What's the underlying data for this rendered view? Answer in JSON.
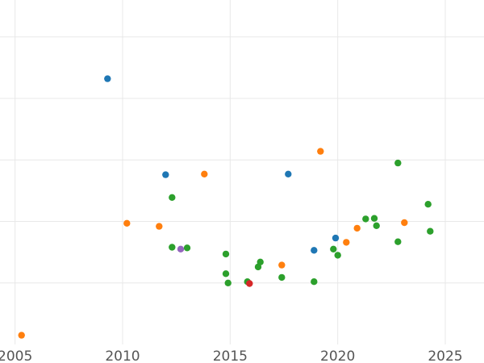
{
  "chart_data": {
    "type": "scatter",
    "title": "",
    "xlabel": "",
    "ylabel": "",
    "grid": true,
    "xlim": [
      2004.3,
      2026.8
    ],
    "ylim": [
      0,
      5.6
    ],
    "x_ticks": [
      2005,
      2010,
      2015,
      2020,
      2025
    ],
    "x_tick_labels": [
      "2005",
      "2010",
      "2015",
      "2020",
      "2025"
    ],
    "y_gridlines": [
      1,
      2,
      3,
      4,
      5
    ],
    "series": [
      {
        "color": "#1f77b4",
        "points": [
          {
            "x": 2009.3,
            "y": 4.32
          },
          {
            "x": 2012.0,
            "y": 2.76
          },
          {
            "x": 2017.7,
            "y": 2.77
          },
          {
            "x": 2018.9,
            "y": 1.53
          },
          {
            "x": 2019.9,
            "y": 1.73
          }
        ]
      },
      {
        "color": "#ff7f0e",
        "points": [
          {
            "x": 2005.3,
            "y": 0.15
          },
          {
            "x": 2010.2,
            "y": 1.97
          },
          {
            "x": 2011.7,
            "y": 1.92
          },
          {
            "x": 2013.8,
            "y": 2.77
          },
          {
            "x": 2017.4,
            "y": 1.29
          },
          {
            "x": 2019.2,
            "y": 3.14
          },
          {
            "x": 2020.4,
            "y": 1.66
          },
          {
            "x": 2020.9,
            "y": 1.89
          },
          {
            "x": 2023.1,
            "y": 1.98
          }
        ]
      },
      {
        "color": "#2ca02c",
        "points": [
          {
            "x": 2012.3,
            "y": 2.39
          },
          {
            "x": 2012.3,
            "y": 1.58
          },
          {
            "x": 2013.0,
            "y": 1.57
          },
          {
            "x": 2014.8,
            "y": 1.47
          },
          {
            "x": 2014.8,
            "y": 1.15
          },
          {
            "x": 2014.9,
            "y": 1.0
          },
          {
            "x": 2015.8,
            "y": 1.02
          },
          {
            "x": 2016.3,
            "y": 1.26
          },
          {
            "x": 2016.4,
            "y": 1.34
          },
          {
            "x": 2017.4,
            "y": 1.09
          },
          {
            "x": 2018.9,
            "y": 1.02
          },
          {
            "x": 2019.8,
            "y": 1.55
          },
          {
            "x": 2020.0,
            "y": 1.45
          },
          {
            "x": 2021.3,
            "y": 2.04
          },
          {
            "x": 2021.7,
            "y": 2.05
          },
          {
            "x": 2021.8,
            "y": 1.93
          },
          {
            "x": 2022.8,
            "y": 2.95
          },
          {
            "x": 2022.8,
            "y": 1.67
          },
          {
            "x": 2024.2,
            "y": 2.28
          },
          {
            "x": 2024.3,
            "y": 1.84
          }
        ]
      },
      {
        "color": "#d62728",
        "points": [
          {
            "x": 2015.9,
            "y": 0.99
          }
        ]
      },
      {
        "color": "#9467bd",
        "points": [
          {
            "x": 2012.7,
            "y": 1.55
          }
        ]
      }
    ]
  }
}
